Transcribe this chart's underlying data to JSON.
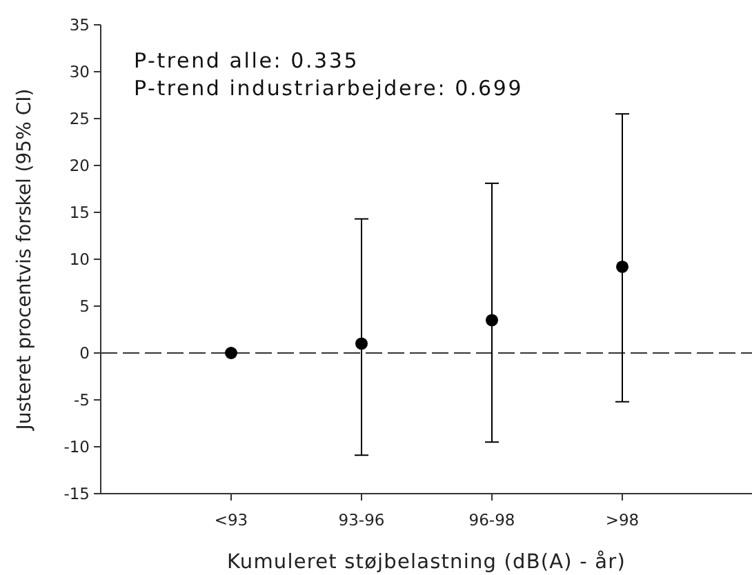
{
  "chart_data": {
    "type": "scatter",
    "xlabel": "Kumuleret støjbelastning (dB(A) - år)",
    "ylabel": "Justeret procentvis forskel (95% CI)",
    "categories": [
      "<93",
      "93-96",
      "96-98",
      ">98"
    ],
    "series": [
      {
        "color": "#000000",
        "values": [
          0,
          1.0,
          3.5,
          9.2
        ],
        "errors": [
          null,
          [
            -10.9,
            14.3
          ],
          [
            -9.5,
            18.1
          ],
          [
            -5.2,
            25.5
          ]
        ]
      }
    ],
    "ylim": [
      -15,
      35
    ],
    "yticks": [
      -15,
      -10,
      -5,
      0,
      5,
      10,
      15,
      20,
      25,
      30,
      35
    ],
    "ref_lines": [
      {
        "axis": "y",
        "value": 0,
        "color": "#333333",
        "line_style": "dashed"
      }
    ],
    "annotations": [
      "P-trend alle: 0.335",
      "P-trend industriarbejdere: 0.699"
    ],
    "marker": "circle",
    "grid": false
  }
}
